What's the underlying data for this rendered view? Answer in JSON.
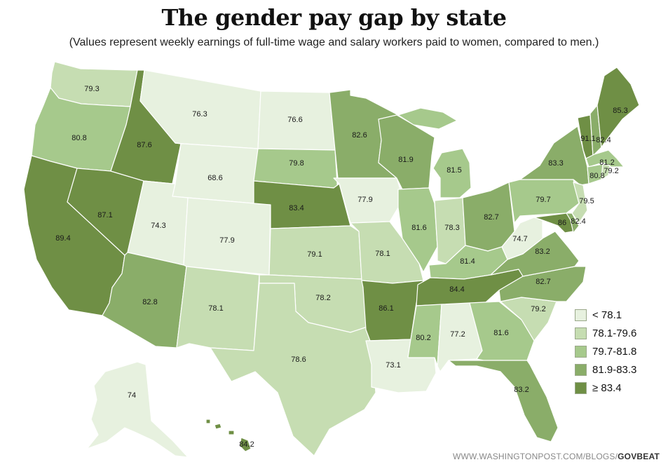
{
  "title": "The gender pay gap by state",
  "subtitle": "(Values represent weekly earnings of full-time wage and salary workers paid to women, compared to men.)",
  "colors": {
    "bin1": "#e7f1df",
    "bin2": "#c6ddb2",
    "bin3": "#a6c98c",
    "bin4": "#8aad69",
    "bin5": "#6f8f45",
    "border": "#ffffff"
  },
  "legend": [
    {
      "label": "< 78.1",
      "bin": "bin1"
    },
    {
      "label": "78.1-79.6",
      "bin": "bin2"
    },
    {
      "label": "79.7-81.8",
      "bin": "bin3"
    },
    {
      "label": "81.9-83.3",
      "bin": "bin4"
    },
    {
      "label": "≥ 83.4",
      "bin": "bin5"
    }
  ],
  "states": {
    "WA": {
      "value": "79.3",
      "bin": "bin2"
    },
    "OR": {
      "value": "80.8",
      "bin": "bin3"
    },
    "CA": {
      "value": "89.4",
      "bin": "bin5"
    },
    "NV": {
      "value": "87.1",
      "bin": "bin5"
    },
    "ID": {
      "value": "87.6",
      "bin": "bin5"
    },
    "MT": {
      "value": "76.3",
      "bin": "bin1"
    },
    "WY": {
      "value": "68.6",
      "bin": "bin1"
    },
    "UT": {
      "value": "74.3",
      "bin": "bin1"
    },
    "AZ": {
      "value": "82.8",
      "bin": "bin4"
    },
    "CO": {
      "value": "77.9",
      "bin": "bin1"
    },
    "NM": {
      "value": "78.1",
      "bin": "bin2"
    },
    "ND": {
      "value": "76.6",
      "bin": "bin1"
    },
    "SD": {
      "value": "79.8",
      "bin": "bin3"
    },
    "NE": {
      "value": "83.4",
      "bin": "bin5"
    },
    "KS": {
      "value": "79.1",
      "bin": "bin2"
    },
    "OK": {
      "value": "78.2",
      "bin": "bin2"
    },
    "TX": {
      "value": "78.6",
      "bin": "bin2"
    },
    "MN": {
      "value": "82.6",
      "bin": "bin4"
    },
    "IA": {
      "value": "77.9",
      "bin": "bin1"
    },
    "MO": {
      "value": "78.1",
      "bin": "bin2"
    },
    "AR": {
      "value": "86.1",
      "bin": "bin5"
    },
    "LA": {
      "value": "73.1",
      "bin": "bin1"
    },
    "WI": {
      "value": "81.9",
      "bin": "bin4"
    },
    "IL": {
      "value": "81.6",
      "bin": "bin3"
    },
    "MI": {
      "value": "81.5",
      "bin": "bin3"
    },
    "IN": {
      "value": "78.3",
      "bin": "bin2"
    },
    "OH": {
      "value": "82.7",
      "bin": "bin4"
    },
    "KY": {
      "value": "81.4",
      "bin": "bin3"
    },
    "TN": {
      "value": "84.4",
      "bin": "bin5"
    },
    "MS": {
      "value": "80.2",
      "bin": "bin3"
    },
    "AL": {
      "value": "77.2",
      "bin": "bin1"
    },
    "GA": {
      "value": "81.6",
      "bin": "bin3"
    },
    "FL": {
      "value": "83.2",
      "bin": "bin4"
    },
    "SC": {
      "value": "79.2",
      "bin": "bin2"
    },
    "NC": {
      "value": "82.7",
      "bin": "bin4"
    },
    "VA": {
      "value": "83.2",
      "bin": "bin4"
    },
    "WV": {
      "value": "74.7",
      "bin": "bin1"
    },
    "PA": {
      "value": "79.7",
      "bin": "bin3"
    },
    "NY": {
      "value": "83.3",
      "bin": "bin4"
    },
    "VT": {
      "value": "91.1",
      "bin": "bin5"
    },
    "NH": {
      "value": "82.4",
      "bin": "bin4"
    },
    "ME": {
      "value": "85.3",
      "bin": "bin5"
    },
    "MA": {
      "value": "81.2",
      "bin": "bin3"
    },
    "RI": {
      "value": "79.2",
      "bin": "bin2"
    },
    "CT": {
      "value": "80.8",
      "bin": "bin3"
    },
    "NJ": {
      "value": "79.5",
      "bin": "bin2"
    },
    "DE": {
      "value": "82.4",
      "bin": "bin4"
    },
    "MD": {
      "value": "86",
      "bin": "bin5"
    },
    "AK": {
      "value": "74",
      "bin": "bin1"
    },
    "HI": {
      "value": "84.2",
      "bin": "bin5"
    }
  },
  "credit": {
    "url": "WWW.WASHINGTONPOST.COM/BLOGS/",
    "section": "GOVBEAT"
  }
}
